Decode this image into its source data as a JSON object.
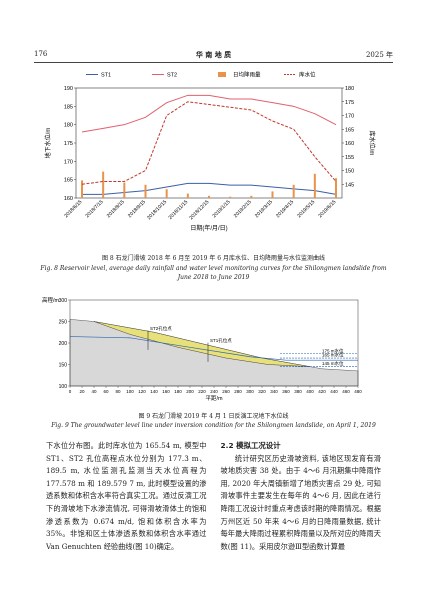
{
  "header": {
    "page": "176",
    "journal": "华 南 地 质",
    "year": "2025 年"
  },
  "chart_data": [
    {
      "type": "line",
      "x_title": "日期(年/月/日)",
      "y_title": "地下水位/m",
      "y2_title": "库水位/m",
      "x": [
        "2018/6/15",
        "2018/7/15",
        "2018/8/15",
        "2018/9/15",
        "2018/10/15",
        "2018/11/15",
        "2018/12/15",
        "2019/1/15",
        "2019/2/15",
        "2019/3/15",
        "2019/4/15",
        "2019/5/15",
        "2019/6/15"
      ],
      "series": [
        {
          "name": "ST1",
          "color": "#3b5fa8",
          "values": [
            161,
            161,
            161.5,
            162,
            163,
            164,
            164,
            163.5,
            163.5,
            163,
            162.5,
            162,
            161
          ],
          "axis": "y"
        },
        {
          "name": "ST2",
          "color": "#e0606e",
          "values": [
            178,
            179,
            180,
            182,
            186,
            188,
            188,
            187,
            187,
            186,
            185,
            183,
            180
          ],
          "axis": "y"
        },
        {
          "name": "日均降雨量",
          "color": "#e8924a",
          "values": [
            40,
            60,
            35,
            30,
            20,
            10,
            5,
            3,
            5,
            15,
            30,
            55,
            45
          ],
          "axis": "y3",
          "kind": "bar"
        },
        {
          "name": "库水位",
          "color": "#c0392b",
          "values": [
            145,
            146,
            146,
            150,
            170,
            175,
            174,
            173,
            172,
            168,
            165,
            155,
            146
          ],
          "axis": "y2",
          "dashed": true
        }
      ],
      "ylim": [
        160,
        190
      ],
      "yticks": [
        160,
        165,
        170,
        175,
        180,
        185,
        190
      ],
      "y2lim": [
        140,
        180
      ],
      "y2ticks": [
        145,
        150,
        155,
        160,
        165,
        170,
        175,
        180
      ],
      "y3lim": [
        0,
        250
      ]
    },
    {
      "type": "profile",
      "x_title": "平距/m",
      "y_title": "高程/m",
      "xlim": [
        0,
        480
      ],
      "xticks": [
        0,
        20,
        40,
        60,
        80,
        100,
        120,
        140,
        160,
        180,
        200,
        220,
        240,
        260,
        280,
        300,
        320,
        340,
        360,
        380,
        400,
        420,
        440,
        460,
        480
      ],
      "ylim": [
        100,
        300
      ],
      "yticks": [
        100,
        150,
        200,
        250,
        300
      ],
      "holes": [
        "ST2孔位点",
        "ST1孔位点"
      ],
      "levels": [
        {
          "value": 175,
          "label": "175 m水位"
        },
        {
          "value": 165,
          "label": "165 m水位"
        },
        {
          "value": 145,
          "label": "145 m水位"
        }
      ]
    }
  ],
  "captions": {
    "fig8_cn": "图 8  石龙门滑坡 2018 年 6 月至 2019 年 6 月库水位、日均降雨量与水位监测曲线",
    "fig8_en": "Fig. 8  Reservoir level, average daily rainfall and water level monitoring curves for the Shilongmen landslide from June 2018 to June 2019",
    "fig9_cn": "图 9  石龙门滑坡 2019 年 4 月 1 日反演工况地下水位线",
    "fig9_en": "Fig. 9  The groundwater level line under inversion condition for the Shilongmen landslide, on April 1, 2019"
  },
  "body": {
    "left": "下水位分布图。此时库水位为 165.54 m, 模型中 ST1、ST2 孔位高程点水位分别为 177.3 m、189.5 m, 水位监测孔监测当天水位高程为 177.578 m 和 189.579 7 m, 此时模型设置的渗透系数和体积含水率符合真实工况。通过反演工况下的滑坡地下水渗流情况, 可得滑坡滑体土的饱和渗透系数为 0.674 m/d, 饱和体积含水率为 35%。非饱和区土体渗透系数和体积含水率通过 Van Genuchten 经验曲线(图 10)确定。",
    "heading": "2.2 模拟工况设计",
    "right": "统计研究区历史滑坡资料, 该地区现发育有滑坡地质灾害 38 处。由于 4～6 月汛期集中降雨作用, 2020 年大周镇新增了地质灾害点 29 处, 可知滑坡事件主要发生在每年的 4～6 月, 因此在进行降雨工况设计时重点考虑该时期的降雨情况。根据万州区近 50 年来 4～6 月的日降雨量数据, 统计每年最大降雨过程累积降雨量以及所对应的降雨天数(图 11)。采用皮尔逊Ⅲ型函数计算最"
  }
}
